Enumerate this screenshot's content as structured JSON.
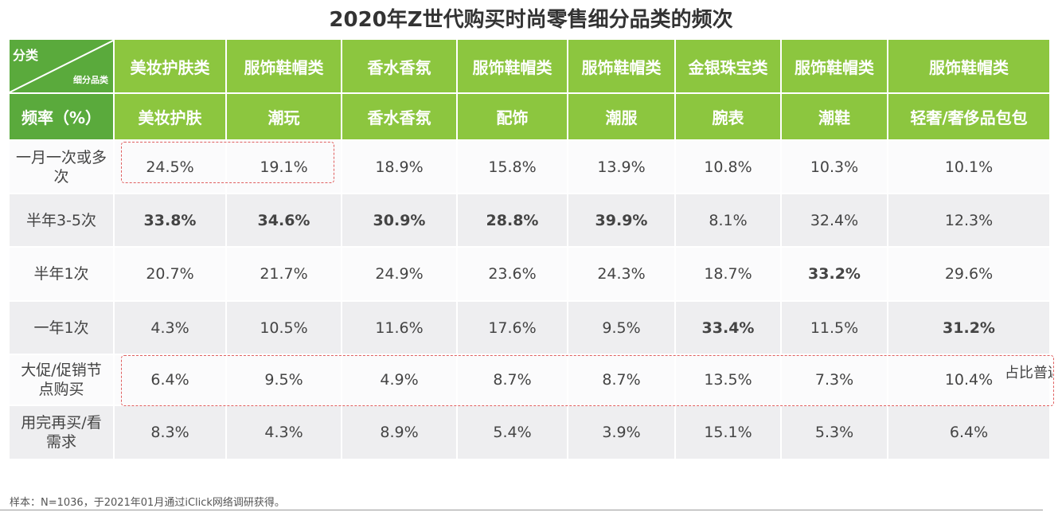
{
  "title": "2020年Z世代购买时尚零售细分品类的频次",
  "chart_data": {
    "type": "table",
    "title": "2020年Z世代购买时尚零售细分品类的频次",
    "corner": {
      "top": "分类",
      "bottom": "细分品类",
      "row_header": "频率（%）"
    },
    "categories": [
      "美妆护肤类",
      "服饰鞋帽类",
      "香水香氛",
      "服饰鞋帽类",
      "服饰鞋帽类",
      "金银珠宝类",
      "服饰鞋帽类",
      "服饰鞋帽类"
    ],
    "subcategories": [
      "美妆护肤",
      "潮玩",
      "香水香氛",
      "配饰",
      "潮服",
      "腕表",
      "潮鞋",
      "轻奢/奢侈品包包"
    ],
    "rows": [
      {
        "label": "一月一次或多次",
        "values": [
          "24.5%",
          "19.1%",
          "18.9%",
          "15.8%",
          "13.9%",
          "10.8%",
          "10.3%",
          "10.1%"
        ],
        "bold": []
      },
      {
        "label": "半年3-5次",
        "values": [
          "33.8%",
          "34.6%",
          "30.9%",
          "28.8%",
          "39.9%",
          "8.1%",
          "32.4%",
          "12.3%"
        ],
        "bold": [
          0,
          1,
          2,
          3,
          4
        ]
      },
      {
        "label": "半年1次",
        "values": [
          "20.7%",
          "21.7%",
          "24.9%",
          "23.6%",
          "24.3%",
          "18.7%",
          "33.2%",
          "29.6%"
        ],
        "bold": [
          6
        ]
      },
      {
        "label": "一年1次",
        "values": [
          "4.3%",
          "10.5%",
          "11.6%",
          "17.6%",
          "9.5%",
          "33.4%",
          "11.5%",
          "31.2%"
        ],
        "bold": [
          5,
          7
        ]
      },
      {
        "label": "大促/促销节点购买",
        "values": [
          "6.4%",
          "9.5%",
          "4.9%",
          "8.7%",
          "8.7%",
          "13.5%",
          "7.3%",
          "10.4%"
        ],
        "bold": []
      },
      {
        "label": "用完再买/看需求",
        "values": [
          "8.3%",
          "4.3%",
          "8.9%",
          "5.4%",
          "3.9%",
          "15.1%",
          "5.3%",
          "6.4%"
        ],
        "bold": []
      }
    ],
    "annotation": "占比普遍较低",
    "colors": {
      "header": "#8cc63f",
      "header_dark": "#5aaa3c",
      "highlight": "#e06060"
    }
  },
  "footer": "样本：N=1036，于2021年01月通过iClick网络调研获得。"
}
